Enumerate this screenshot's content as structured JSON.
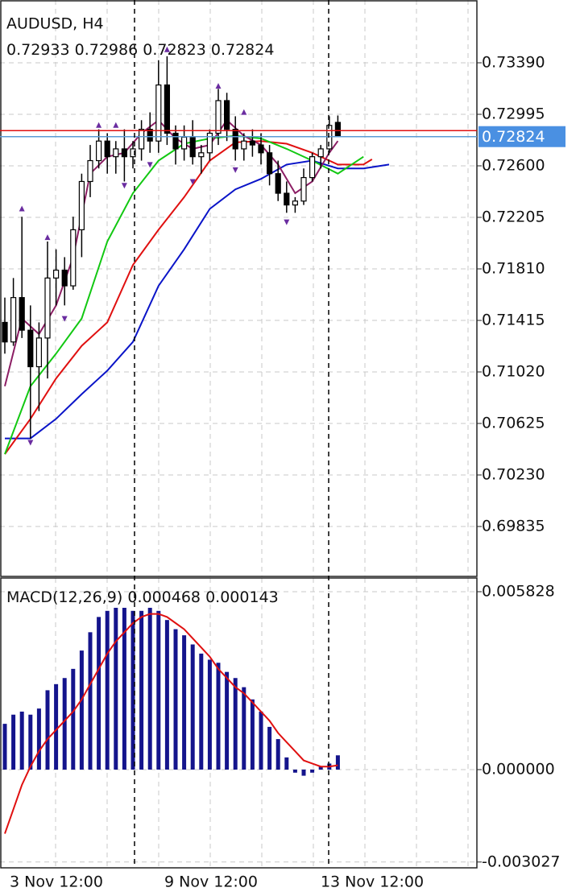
{
  "chart_data": [
    {
      "type": "candlestick",
      "title": "AUDUSD, H4",
      "open": [
        0.714,
        0.7125,
        0.7159,
        0.7134,
        0.7106,
        0.7128,
        0.7174,
        0.718,
        0.7168,
        0.7211,
        0.7248,
        0.7264,
        0.7279,
        0.7267,
        0.7273,
        0.7267,
        0.7273,
        0.7288,
        0.7279,
        0.7322,
        0.7285,
        0.7273,
        0.7282,
        0.7267,
        0.727,
        0.7285,
        0.731,
        0.7288,
        0.7273,
        0.7279,
        0.7276,
        0.727,
        0.7254,
        0.7239,
        0.723,
        0.7233,
        0.7251,
        0.7267,
        0.7273,
        0.72933
      ],
      "high": [
        0.7159,
        0.7174,
        0.7221,
        0.7153,
        0.714,
        0.7202,
        0.7196,
        0.719,
        0.7221,
        0.7254,
        0.7276,
        0.7288,
        0.7285,
        0.7279,
        0.7288,
        0.7279,
        0.7295,
        0.7301,
        0.7341,
        0.7344,
        0.7291,
        0.7291,
        0.7295,
        0.7276,
        0.7288,
        0.7319,
        0.7316,
        0.7298,
        0.7285,
        0.7288,
        0.7285,
        0.7276,
        0.7264,
        0.7248,
        0.7236,
        0.7258,
        0.727,
        0.7276,
        0.7298,
        0.72986
      ],
      "low": [
        0.7116,
        0.7122,
        0.7128,
        0.7051,
        0.7072,
        0.7097,
        0.7153,
        0.7153,
        0.7165,
        0.719,
        0.7236,
        0.7258,
        0.7254,
        0.7254,
        0.7248,
        0.7258,
        0.7264,
        0.727,
        0.727,
        0.7276,
        0.7261,
        0.7264,
        0.7261,
        0.7254,
        0.7264,
        0.7276,
        0.7279,
        0.7264,
        0.7264,
        0.7267,
        0.7261,
        0.7245,
        0.7233,
        0.7224,
        0.7224,
        0.723,
        0.7248,
        0.7258,
        0.727,
        0.72823
      ],
      "close": [
        0.7125,
        0.7159,
        0.7134,
        0.7106,
        0.7128,
        0.7174,
        0.718,
        0.7168,
        0.7211,
        0.7248,
        0.7264,
        0.7279,
        0.7267,
        0.7273,
        0.7267,
        0.7273,
        0.7288,
        0.7279,
        0.7322,
        0.7285,
        0.7273,
        0.7282,
        0.7267,
        0.727,
        0.7285,
        0.731,
        0.7288,
        0.7273,
        0.7279,
        0.7276,
        0.727,
        0.7254,
        0.7239,
        0.723,
        0.7233,
        0.7251,
        0.7267,
        0.7273,
        0.7291,
        0.72824
      ],
      "overlays": [
        {
          "color": "#0a14c8",
          "x": [
            0,
            3,
            6,
            9,
            12,
            15,
            18,
            21,
            24,
            27,
            30,
            33,
            36,
            39,
            42,
            45
          ],
          "values": [
            0.7051,
            0.7051,
            0.7066,
            0.7085,
            0.7103,
            0.7125,
            0.7168,
            0.7196,
            0.7227,
            0.7242,
            0.725,
            0.7261,
            0.7264,
            0.7258,
            0.7258,
            0.7261
          ]
        },
        {
          "color": "#e01010",
          "x": [
            0,
            3,
            6,
            9,
            12,
            15,
            18,
            21,
            24,
            27,
            30,
            33,
            36,
            39,
            42,
            43
          ],
          "values": [
            0.7039,
            0.7066,
            0.7097,
            0.7122,
            0.714,
            0.7184,
            0.7211,
            0.7236,
            0.7264,
            0.7278,
            0.7279,
            0.7277,
            0.727,
            0.7261,
            0.7261,
            0.7265
          ]
        },
        {
          "color": "#12c812",
          "x": [
            0,
            3,
            6,
            9,
            12,
            15,
            18,
            21,
            24,
            27,
            30,
            33,
            36,
            39,
            42
          ],
          "values": [
            0.7039,
            0.7091,
            0.7116,
            0.7143,
            0.7202,
            0.7239,
            0.7264,
            0.7277,
            0.7281,
            0.7283,
            0.7281,
            0.7273,
            0.7264,
            0.7254,
            0.7267
          ]
        },
        {
          "color": "#8c1e64",
          "x": [
            0,
            2,
            4,
            6,
            8,
            10,
            12,
            14,
            16,
            18,
            20,
            22,
            24,
            26,
            28,
            30,
            32,
            34,
            36,
            38,
            39
          ],
          "values": [
            0.7091,
            0.7143,
            0.7131,
            0.7153,
            0.719,
            0.7254,
            0.7267,
            0.727,
            0.7285,
            0.7295,
            0.7281,
            0.7273,
            0.7276,
            0.7295,
            0.7283,
            0.7276,
            0.7261,
            0.7239,
            0.7248,
            0.727,
            0.7279
          ]
        }
      ],
      "fractals_up": {
        "color": "#6a2ca0",
        "x": [
          2,
          5,
          11,
          13,
          19,
          25,
          28
        ],
        "values": [
          0.7227,
          0.7205,
          0.7291,
          0.7291,
          0.7349,
          0.7321,
          0.7301
        ]
      },
      "fractals_down": {
        "color": "#6a2ca0",
        "x": [
          3,
          7,
          14,
          17,
          22,
          27,
          33
        ],
        "values": [
          0.7048,
          0.7143,
          0.7245,
          0.7261,
          0.7248,
          0.7257,
          0.7217
        ]
      },
      "ask_line": 0.7287,
      "ylim": [
        0.694524,
        0.738714
      ],
      "yticks": [
        {
          "value": 0.7339,
          "label": "0.73390"
        },
        0.72995,
        {
          "value": 0.726,
          "label": "0.72600"
        },
        0.72205,
        {
          "value": 0.7181,
          "label": "0.71810"
        },
        0.71415,
        {
          "value": 0.7102,
          "label": "0.71020"
        },
        0.70625,
        {
          "value": 0.7023,
          "label": "0.70230"
        },
        0.69835
      ],
      "grid": true
    },
    {
      "type": "macd",
      "title": "MACD(12,26,9)",
      "series": [
        {
          "color": "#14148c",
          "values": [
            0.0015,
            0.0018,
            0.0019,
            0.0018,
            0.002,
            0.0026,
            0.0028,
            0.003,
            0.0033,
            0.0039,
            0.0045,
            0.005,
            0.0052,
            0.0053,
            0.0053,
            0.0052,
            0.0052,
            0.0053,
            0.0052,
            0.0049,
            0.0046,
            0.0044,
            0.0041,
            0.0038,
            0.0036,
            0.0035,
            0.0032,
            0.003,
            0.0027,
            0.0023,
            0.0019,
            0.0014,
            0.001,
            0.0004,
            -0.0001,
            -0.0002,
            -0.0001,
            0.0001,
            0.0002,
            0.000468
          ]
        },
        {
          "color": "#e01010",
          "values": [
            -0.0021,
            -0.0013,
            -0.0005,
            0.0001,
            0.0006,
            0.001,
            0.0013,
            0.0016,
            0.0019,
            0.0023,
            0.0028,
            0.0033,
            0.0038,
            0.0042,
            0.0045,
            0.0048,
            0.005,
            0.0051,
            0.0051,
            0.005,
            0.0048,
            0.0046,
            0.0043,
            0.004,
            0.0037,
            0.0033,
            0.003,
            0.0027,
            0.0025,
            0.0022,
            0.0019,
            0.0016,
            0.0012,
            0.0009,
            0.0006,
            0.0003,
            0.0002,
            0.0001,
            0.0001,
            0.000143
          ]
        }
      ],
      "ylim": [
        -0.003217,
        0.006276
      ],
      "yticks": [
        0.005828,
        {
          "value": 0,
          "label": "0.000000"
        },
        -0.003027
      ],
      "x_labels": [
        "3 Nov 12:00",
        "9 Nov 12:00",
        "13 Nov 12:00"
      ],
      "grid": true
    }
  ]
}
